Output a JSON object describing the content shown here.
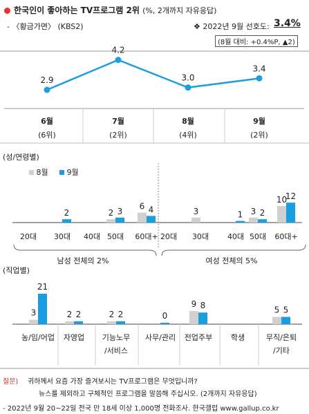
{
  "header": {
    "title": "한국인이 좋아하는 TV프로그램 2위",
    "title_note": "(%, 2개까지 자유응답)",
    "program": "- 〈황금가면〉 (KBS2)",
    "rate_label": "2022년 9월 선호도:",
    "rate_value": "3.4%",
    "rate_change": "(8월 대비: +0.4%P, ▲2)"
  },
  "line_chart": {
    "type": "line",
    "months": [
      "6월",
      "7월",
      "8월",
      "9월"
    ],
    "ranks": [
      "(6위)",
      "(2위)",
      "(4위)",
      "(2위)"
    ],
    "values": [
      2.9,
      4.2,
      3.0,
      3.4
    ],
    "value_labels": [
      "2.9",
      "4.2",
      "3.0",
      "3.4"
    ],
    "ylim": [
      2.0,
      5.0
    ],
    "color": "#1a9ee0"
  },
  "gender_age_chart": {
    "type": "bar",
    "section_label": "(성/연령별)",
    "legend": [
      "8월",
      "9월"
    ],
    "colors": {
      "aug": "#d0d0d0",
      "sep": "#1a9ee0"
    },
    "categories": [
      "20대",
      "30대",
      "40대",
      "50대",
      "60대+",
      "20대",
      "30대",
      "40대",
      "50대",
      "60대+"
    ],
    "aug": [
      null,
      null,
      null,
      2,
      6,
      null,
      3,
      null,
      3,
      10
    ],
    "sep": [
      null,
      2,
      null,
      3,
      4,
      null,
      null,
      1,
      2,
      12
    ],
    "aug_labels": [
      "",
      "",
      "",
      "2",
      "6",
      "",
      "3",
      "",
      "3",
      "10"
    ],
    "sep_labels": [
      "",
      "2",
      "",
      "3",
      "4",
      "",
      "",
      "1",
      "2",
      "12"
    ],
    "group_labels": [
      "남성 전체의 2%",
      "여성 전체의 5%"
    ]
  },
  "job_chart": {
    "type": "bar",
    "section_label": "(직업별)",
    "categories": [
      [
        "농/임/어업"
      ],
      [
        "자영업"
      ],
      [
        "기능노무",
        "/서비스"
      ],
      [
        "사무/관리"
      ],
      [
        "전업주부"
      ],
      [
        "학생"
      ],
      [
        "무직/은퇴",
        "/기타"
      ]
    ],
    "aug": [
      3,
      2,
      2,
      null,
      9,
      null,
      5
    ],
    "sep": [
      21,
      2,
      2,
      0,
      8,
      null,
      5
    ],
    "aug_labels": [
      "3",
      "2",
      "2",
      "",
      "9",
      "",
      "5"
    ],
    "sep_labels": [
      "21",
      "2",
      "2",
      "0",
      "8",
      "",
      "5"
    ]
  },
  "footer": {
    "q_label": "질문)",
    "q_line1": "귀하께서 요즘 가장 즐겨보시는 TV프로그램은 무엇입니까?",
    "q_line2": "뉴스를 제외하고 구체적인 프로그램을 말씀해 주십시오. (2개까지 자유응답)",
    "source": "- 2022년 9월 20~22일 전국 만 18세 이상 1,000명 전화조사. 한국갤럽 www.gallup.co.kr"
  }
}
